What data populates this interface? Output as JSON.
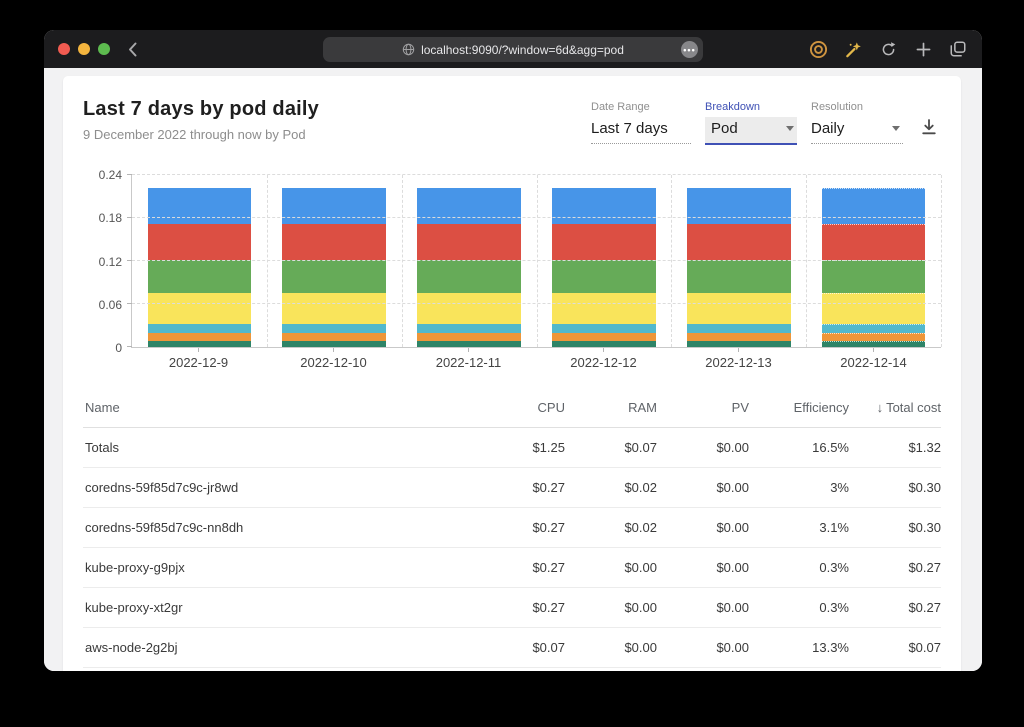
{
  "browser": {
    "url_text": "localhost:9090/?window=6d&agg=pod",
    "traffic_lights": {
      "close": "#f15b51",
      "minimize": "#f3b43e",
      "zoom": "#5dbb4f"
    }
  },
  "header": {
    "title": "Last 7 days by pod daily",
    "subtitle": "9 December 2022 through now by Pod"
  },
  "controls": {
    "date_range": {
      "label": "Date Range",
      "value": "Last 7 days"
    },
    "breakdown": {
      "label": "Breakdown",
      "value": "Pod"
    },
    "resolution": {
      "label": "Resolution",
      "value": "Daily"
    }
  },
  "colors": {
    "accent": "#3f51b5",
    "titlebar": "#1c1c1e",
    "page_bg": "#f2f2f3"
  },
  "chart_data": {
    "type": "bar",
    "stacked": true,
    "title": "Last 7 days by pod daily",
    "xlabel": "",
    "ylabel": "",
    "categories": [
      "2022-12-9",
      "2022-12-10",
      "2022-12-11",
      "2022-12-12",
      "2022-12-13",
      "2022-12-14"
    ],
    "series": [
      {
        "name": "segment-teal",
        "color": "#2e8467",
        "values": [
          0.008,
          0.008,
          0.008,
          0.008,
          0.008,
          0.008
        ]
      },
      {
        "name": "segment-orange",
        "color": "#ee9639",
        "values": [
          0.012,
          0.012,
          0.012,
          0.012,
          0.012,
          0.012
        ]
      },
      {
        "name": "segment-cyan",
        "color": "#52b8cc",
        "values": [
          0.012,
          0.012,
          0.012,
          0.012,
          0.012,
          0.012
        ]
      },
      {
        "name": "segment-yellow",
        "color": "#f9e45b",
        "values": [
          0.043,
          0.043,
          0.043,
          0.043,
          0.043,
          0.043
        ]
      },
      {
        "name": "segment-green",
        "color": "#66ab58",
        "values": [
          0.046,
          0.046,
          0.046,
          0.046,
          0.046,
          0.046
        ]
      },
      {
        "name": "segment-red",
        "color": "#dc4f43",
        "values": [
          0.051,
          0.051,
          0.051,
          0.051,
          0.051,
          0.051
        ]
      },
      {
        "name": "segment-blue",
        "color": "#4795e8",
        "values": [
          0.05,
          0.05,
          0.05,
          0.05,
          0.05,
          0.05
        ]
      }
    ],
    "ylim": [
      0,
      0.24
    ],
    "yticks": [
      0,
      0.06,
      0.12,
      0.18,
      0.24
    ],
    "ytick_labels": [
      "0",
      "0.06",
      "0.12",
      "0.18",
      "0.24"
    ],
    "grid": true,
    "legend": false,
    "last_bar_dashed": true
  },
  "table": {
    "sort_arrow": "↓",
    "columns": [
      {
        "label": "Name",
        "sorted": false
      },
      {
        "label": "CPU",
        "sorted": false
      },
      {
        "label": "RAM",
        "sorted": false
      },
      {
        "label": "PV",
        "sorted": false
      },
      {
        "label": "Efficiency",
        "sorted": false
      },
      {
        "label": "Total cost",
        "sorted": true
      }
    ],
    "rows": [
      {
        "name": "Totals",
        "cpu": "$1.25",
        "ram": "$0.07",
        "pv": "$0.00",
        "efficiency": "16.5%",
        "total": "$1.32"
      },
      {
        "name": "coredns-59f85d7c9c-jr8wd",
        "cpu": "$0.27",
        "ram": "$0.02",
        "pv": "$0.00",
        "efficiency": "3%",
        "total": "$0.30"
      },
      {
        "name": "coredns-59f85d7c9c-nn8dh",
        "cpu": "$0.27",
        "ram": "$0.02",
        "pv": "$0.00",
        "efficiency": "3.1%",
        "total": "$0.30"
      },
      {
        "name": "kube-proxy-g9pjx",
        "cpu": "$0.27",
        "ram": "$0.00",
        "pv": "$0.00",
        "efficiency": "0.3%",
        "total": "$0.27"
      },
      {
        "name": "kube-proxy-xt2gr",
        "cpu": "$0.27",
        "ram": "$0.00",
        "pv": "$0.00",
        "efficiency": "0.3%",
        "total": "$0.27"
      },
      {
        "name": "aws-node-2g2bj",
        "cpu": "$0.07",
        "ram": "$0.00",
        "pv": "$0.00",
        "efficiency": "13.3%",
        "total": "$0.07"
      }
    ]
  }
}
